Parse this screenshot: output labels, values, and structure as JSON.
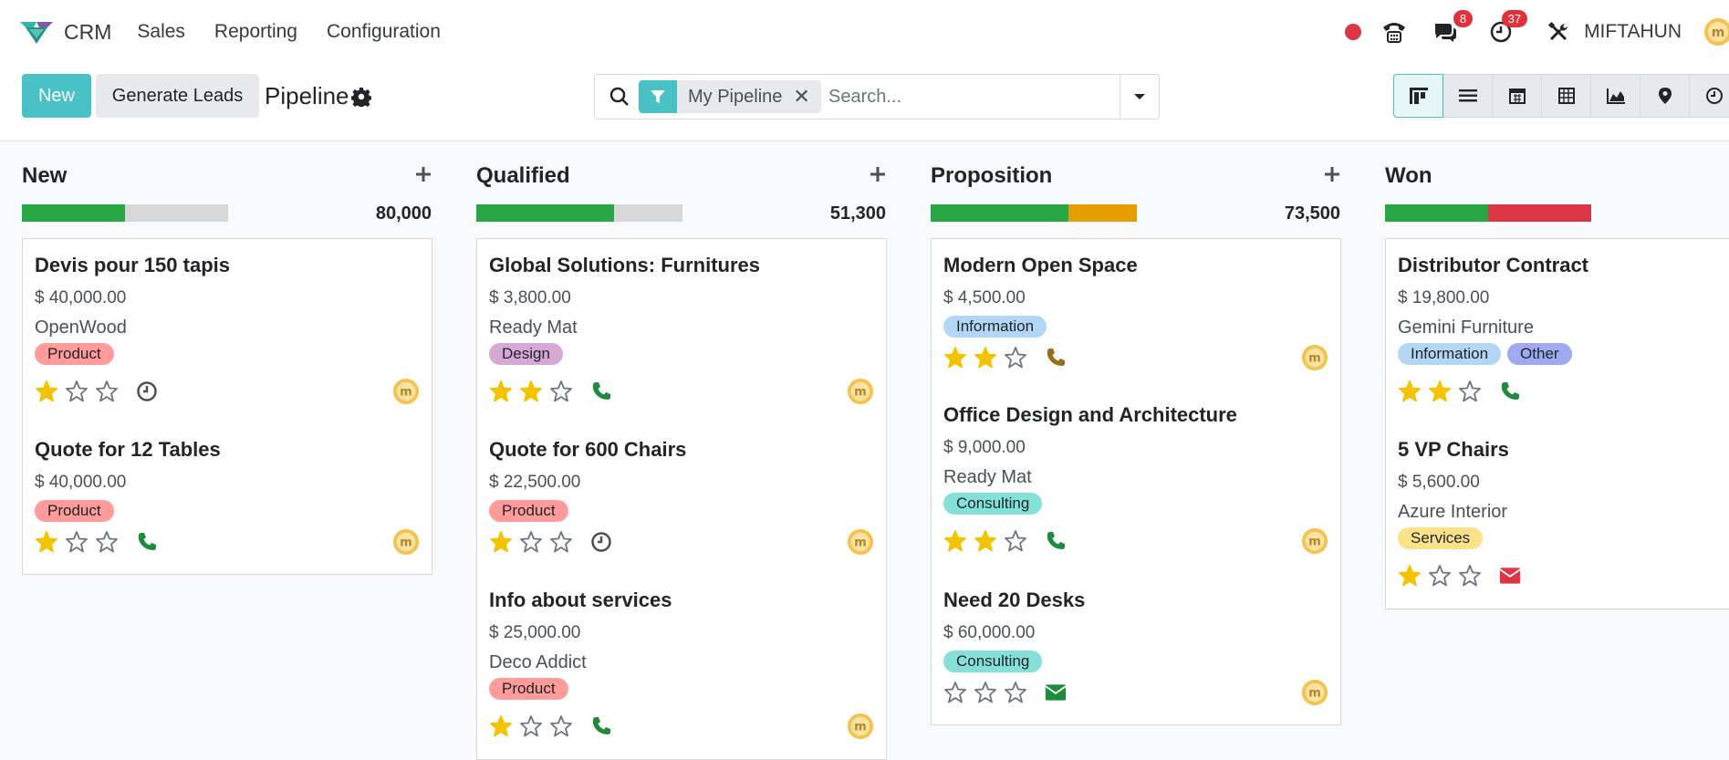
{
  "app": {
    "name": "CRM",
    "menu": [
      "Sales",
      "Reporting",
      "Configuration"
    ],
    "user": "MIFTAHUN",
    "messages_badge": "8",
    "activities_badge": "37"
  },
  "control": {
    "new_label": "New",
    "generate_label": "Generate Leads",
    "breadcrumb": "Pipeline",
    "facet_label": "My Pipeline",
    "search_placeholder": "Search..."
  },
  "views": [
    "kanban-view-icon",
    "list-view-icon",
    "calendar-view-icon",
    "pivot-view-icon",
    "graph-view-icon",
    "map-view-icon",
    "activity-view-icon"
  ],
  "colors": {
    "accent": "#4ac1c5",
    "progress_green": "#28a745",
    "progress_orange": "#e59d00",
    "progress_red": "#dc3545",
    "tag_product": "#ff9b9b",
    "tag_design": "#d6a8d6",
    "tag_information": "#b3d6f5",
    "tag_consulting": "#85e0da",
    "tag_other": "#9fa9ef",
    "tag_services": "#fce38a"
  },
  "columns": [
    {
      "name": "New",
      "total": "80,000",
      "progress": [
        {
          "color": "#28a745",
          "fraction": 0.5
        }
      ],
      "cards": [
        {
          "title": "Devis pour 150 tapis",
          "amount": "$ 40,000.00",
          "company": "OpenWood",
          "tags": [
            {
              "label": "Product",
              "color": "#ff9b9b"
            }
          ],
          "stars": 1,
          "activity": "clock-icon"
        },
        {
          "title": "Quote for 12 Tables",
          "amount": "$ 40,000.00",
          "company": "",
          "tags": [
            {
              "label": "Product",
              "color": "#ff9b9b"
            }
          ],
          "stars": 1,
          "activity": "phone-icon"
        }
      ]
    },
    {
      "name": "Qualified",
      "total": "51,300",
      "progress": [
        {
          "color": "#28a745",
          "fraction": 0.667
        }
      ],
      "cards": [
        {
          "title": "Global Solutions: Furnitures",
          "amount": "$ 3,800.00",
          "company": "Ready Mat",
          "tags": [
            {
              "label": "Design",
              "color": "#d6a8d6"
            }
          ],
          "stars": 2,
          "activity": "phone-icon"
        },
        {
          "title": "Quote for 600 Chairs",
          "amount": "$ 22,500.00",
          "company": "",
          "tags": [
            {
              "label": "Product",
              "color": "#ff9b9b"
            }
          ],
          "stars": 1,
          "activity": "clock-icon"
        },
        {
          "title": "Info about services",
          "amount": "$ 25,000.00",
          "company": "Deco Addict",
          "tags": [
            {
              "label": "Product",
              "color": "#ff9b9b"
            }
          ],
          "stars": 1,
          "activity": "phone-icon"
        }
      ]
    },
    {
      "name": "Proposition",
      "total": "73,500",
      "progress": [
        {
          "color": "#28a745",
          "fraction": 0.667
        },
        {
          "color": "#e59d00",
          "fraction": 0.333
        }
      ],
      "cards": [
        {
          "title": "Modern Open Space",
          "amount": "$ 4,500.00",
          "company": "",
          "tags": [
            {
              "label": "Information",
              "color": "#b3d6f5"
            }
          ],
          "stars": 2,
          "activity": "phone-icon-warning"
        },
        {
          "title": "Office Design and Architecture",
          "amount": "$ 9,000.00",
          "company": "Ready Mat",
          "tags": [
            {
              "label": "Consulting",
              "color": "#85e0da"
            }
          ],
          "stars": 2,
          "activity": "phone-icon"
        },
        {
          "title": "Need 20 Desks",
          "amount": "$ 60,000.00",
          "company": "",
          "tags": [
            {
              "label": "Consulting",
              "color": "#85e0da"
            }
          ],
          "stars": 0,
          "activity": "envelope-icon"
        }
      ]
    },
    {
      "name": "Won",
      "total": "",
      "progress": [
        {
          "color": "#28a745",
          "fraction": 0.5
        },
        {
          "color": "#dc3545",
          "fraction": 0.5
        }
      ],
      "cards": [
        {
          "title": "Distributor Contract",
          "amount": "$ 19,800.00",
          "company": "Gemini Furniture",
          "tags": [
            {
              "label": "Information",
              "color": "#b3d6f5"
            },
            {
              "label": "Other",
              "color": "#9fa9ef"
            }
          ],
          "stars": 2,
          "activity": "phone-icon"
        },
        {
          "title": "5 VP Chairs",
          "amount": "$ 5,600.00",
          "company": "Azure Interior",
          "tags": [
            {
              "label": "Services",
              "color": "#fce38a"
            }
          ],
          "stars": 1,
          "activity": "envelope-icon-danger"
        }
      ]
    }
  ]
}
